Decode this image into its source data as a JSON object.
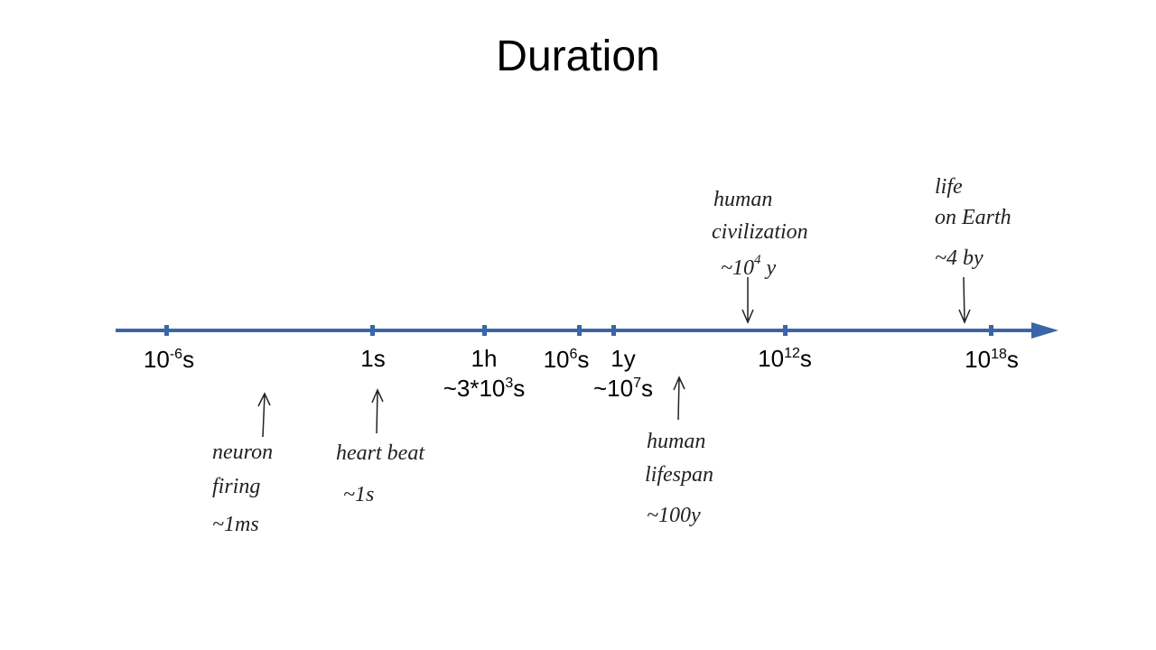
{
  "title": "Duration",
  "ticks": [
    {
      "base": "10",
      "sup": "-6",
      "unit": "s"
    },
    {
      "label": "1s"
    },
    {
      "label": "1h",
      "note": {
        "base": "~3*10",
        "sup": "3",
        "unit": "s"
      }
    },
    {
      "base": "10",
      "sup": "6",
      "unit": "s"
    },
    {
      "label": "1y",
      "note": {
        "base": "~10",
        "sup": "7",
        "unit": "s"
      }
    },
    {
      "base": "10",
      "sup": "12",
      "unit": "s"
    },
    {
      "base": "10",
      "sup": "18",
      "unit": "s"
    }
  ],
  "annotations": [
    {
      "lines": [
        "neuron",
        "firing",
        "~1ms"
      ]
    },
    {
      "lines": [
        "heart beat",
        "~1s"
      ]
    },
    {
      "lines": [
        "human",
        "lifespan",
        "~100y"
      ]
    },
    {
      "lines": [
        "human",
        "civilization"
      ],
      "value": {
        "base": "~10",
        "sup": "4",
        "unit": " y"
      }
    },
    {
      "lines": [
        "life",
        "on Earth",
        "~4 by"
      ]
    }
  ]
}
